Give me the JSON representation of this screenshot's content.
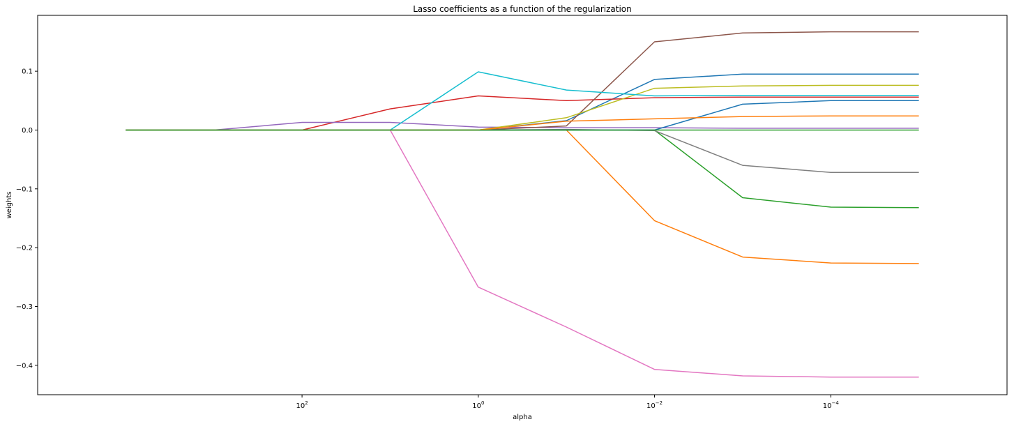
{
  "chart_data": {
    "type": "line",
    "title": "Lasso coefficients as a function of the regularization",
    "xlabel": "alpha",
    "ylabel": "weights",
    "xscale": "log",
    "xaxis_inverted": true,
    "x": [
      10000,
      1000,
      100,
      10,
      1,
      0.1,
      0.01,
      0.001,
      0.0001,
      1e-05
    ],
    "xlim": [
      100000,
      1e-06
    ],
    "ylim": [
      -0.45,
      0.195
    ],
    "xticks": [
      {
        "value": 100,
        "base": "10",
        "exp": "2"
      },
      {
        "value": 1,
        "base": "10",
        "exp": "0"
      },
      {
        "value": 0.01,
        "base": "10",
        "exp": "−2"
      },
      {
        "value": 0.0001,
        "base": "10",
        "exp": "−4"
      }
    ],
    "yticks": [
      {
        "value": 0.1,
        "label": "0.1"
      },
      {
        "value": 0.0,
        "label": "0.0"
      },
      {
        "value": -0.1,
        "label": "−0.1"
      },
      {
        "value": -0.2,
        "label": "−0.2"
      },
      {
        "value": -0.3,
        "label": "−0.3"
      },
      {
        "value": -0.4,
        "label": "−0.4"
      }
    ],
    "grid": false,
    "legend": "none",
    "series": [
      {
        "color": "#1f77b4",
        "values": [
          0,
          0,
          0,
          0,
          0,
          0.016,
          0.086,
          0.095,
          0.095,
          0.095
        ]
      },
      {
        "color": "#ff7f0e",
        "values": [
          0,
          0,
          0,
          0,
          0,
          0,
          -0.154,
          -0.216,
          -0.226,
          -0.227
        ]
      },
      {
        "color": "#2ca02c",
        "values": [
          0,
          0,
          0,
          0,
          0,
          0,
          0,
          -0.115,
          -0.131,
          -0.132
        ]
      },
      {
        "color": "#d62728",
        "values": [
          0,
          0,
          0,
          0.036,
          0.058,
          0.05,
          0.055,
          0.056,
          0.056,
          0.056
        ]
      },
      {
        "color": "#9467bd",
        "values": [
          0,
          0,
          0.013,
          0.013,
          0.005,
          0.004,
          0.004,
          0.003,
          0.003,
          0.003
        ]
      },
      {
        "color": "#8c564b",
        "values": [
          0,
          0,
          0,
          0,
          0,
          0.007,
          0.15,
          0.165,
          0.167,
          0.167
        ]
      },
      {
        "color": "#e377c2",
        "values": [
          0,
          0,
          0,
          0,
          -0.267,
          -0.335,
          -0.407,
          -0.418,
          -0.42,
          -0.42
        ]
      },
      {
        "color": "#7f7f7f",
        "values": [
          0,
          0,
          0,
          0,
          0,
          0.001,
          -0.001,
          -0.06,
          -0.072,
          -0.072
        ]
      },
      {
        "color": "#bcbd22",
        "values": [
          0,
          0,
          0,
          0,
          0,
          0.021,
          0.071,
          0.075,
          0.076,
          0.076
        ]
      },
      {
        "color": "#17becf",
        "values": [
          0,
          0,
          0,
          0,
          0.099,
          0.068,
          0.058,
          0.059,
          0.059,
          0.059
        ]
      },
      {
        "color": "#1f77b4",
        "values": [
          0,
          0,
          0,
          0,
          0,
          0,
          0,
          0.044,
          0.05,
          0.05
        ]
      },
      {
        "color": "#ff7f0e",
        "values": [
          0,
          0,
          0,
          0,
          0,
          0.015,
          0.019,
          0.023,
          0.024,
          0.024
        ]
      },
      {
        "color": "#2ca02c",
        "values": [
          0,
          0,
          0,
          0,
          0,
          0,
          0,
          0,
          0,
          0
        ]
      }
    ]
  }
}
